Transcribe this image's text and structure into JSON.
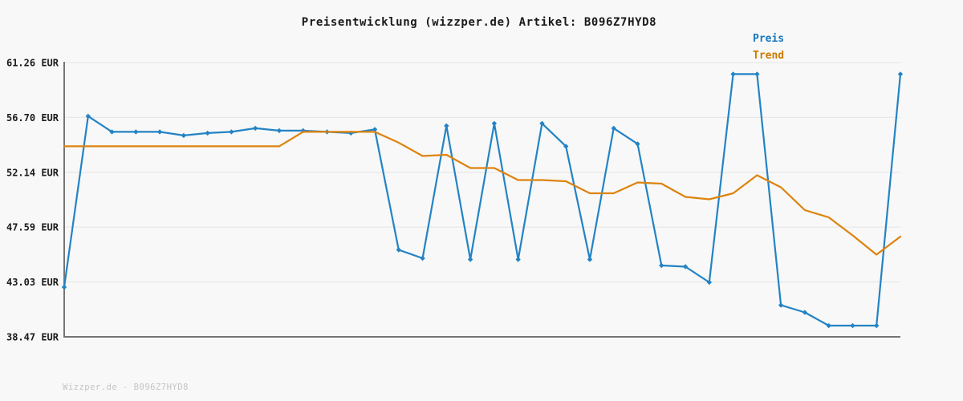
{
  "title": "Preisentwicklung (wizzper.de) Artikel: B096Z7HYD8",
  "footer": "Wizzper.de - B096Z7HYD8",
  "legend": [
    {
      "label": "Preis",
      "color": "#1878be"
    },
    {
      "label": "Trend",
      "color": "#cc7a00"
    }
  ],
  "colors": {
    "background": "#f8f8f8",
    "gridline": "#e8e8e8",
    "axis": "#757575",
    "tick_label": "#1a1a1a",
    "title": "#1a1a1a",
    "watermark": "#c4c4c4",
    "price_line": "#2383c4",
    "trend_line": "#dd830e"
  },
  "chart_data": {
    "type": "line",
    "title": "Preisentwicklung (wizzper.de) Artikel: B096Z7HYD8",
    "xlabel": "",
    "ylabel": "",
    "x_axis": {
      "labels_visible": false,
      "points": 36
    },
    "ylim": [
      38.47,
      61.26
    ],
    "yticks": [
      61.26,
      56.7,
      52.14,
      47.59,
      43.03,
      38.47
    ],
    "ytick_labels": [
      "61.26 EUR",
      "56.70 EUR",
      "52.14 EUR",
      "47.59 EUR",
      "43.03 EUR",
      "38.47 EUR"
    ],
    "grid": "horizontal",
    "legend_position": "top-right",
    "series": [
      {
        "name": "Preis",
        "color": "#2383c4",
        "markers": true,
        "values": [
          42.6,
          56.8,
          55.5,
          55.5,
          55.5,
          55.2,
          55.4,
          55.5,
          55.8,
          55.6,
          55.6,
          55.5,
          55.4,
          55.7,
          45.7,
          45.0,
          56.0,
          44.9,
          56.2,
          44.9,
          56.2,
          54.3,
          44.9,
          55.8,
          54.5,
          44.4,
          44.3,
          43.0,
          60.3,
          60.3,
          41.1,
          40.5,
          39.4,
          39.4,
          39.4,
          60.3
        ]
      },
      {
        "name": "Trend",
        "color": "#dd830e",
        "markers": false,
        "values": [
          54.3,
          54.3,
          54.3,
          54.3,
          54.3,
          54.3,
          54.3,
          54.3,
          54.3,
          54.3,
          55.5,
          55.5,
          55.5,
          55.5,
          54.6,
          53.5,
          53.6,
          52.5,
          52.5,
          51.5,
          51.5,
          51.4,
          50.4,
          50.4,
          51.3,
          51.2,
          50.1,
          49.9,
          50.4,
          51.9,
          50.9,
          49.0,
          48.4,
          46.9,
          45.3,
          46.8
        ]
      }
    ]
  }
}
